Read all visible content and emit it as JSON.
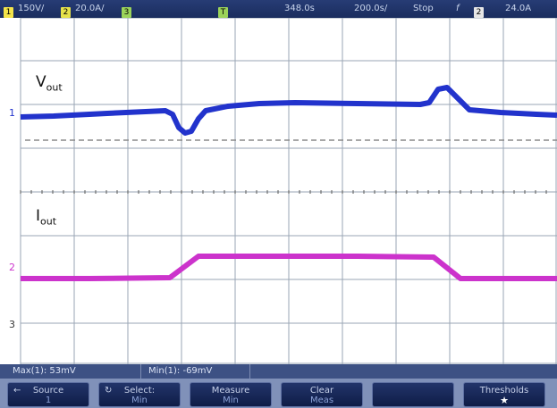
{
  "status": {
    "ch1_scale": "150V/",
    "ch2_scale": "20.0A/",
    "ch3_marker": "3",
    "trig_marker": "T",
    "time_delay": "348.0s",
    "time_scale": "200.0s/",
    "run_state": "Stop",
    "trig_slope": "f",
    "trig_ch": "2",
    "trig_level": "24.0A"
  },
  "channels": {
    "vout_label": "V",
    "vout_sub": "out",
    "iout_label": "I",
    "iout_sub": "out",
    "ch1_marker": "1",
    "ch2_marker": "2",
    "ch3_marker": "3"
  },
  "colors": {
    "vout": "#2233cc",
    "iout": "#cc33cc",
    "grid": "#9aa6b4"
  },
  "measurements": {
    "max": "Max(1): 53mV",
    "min": "Min(1): -69mV"
  },
  "softkeys": [
    {
      "label": "Source",
      "sub": "1",
      "glyph": "←"
    },
    {
      "label": "Select:",
      "sub": "Min",
      "glyph": "↻"
    },
    {
      "label": "Measure",
      "sub": "Min",
      "glyph": ""
    },
    {
      "label": "Clear",
      "sub": "Meas",
      "glyph": ""
    },
    {
      "label": "",
      "sub": "",
      "glyph": ""
    },
    {
      "label": "Thresholds",
      "sub": "",
      "glyph": "★"
    }
  ]
}
